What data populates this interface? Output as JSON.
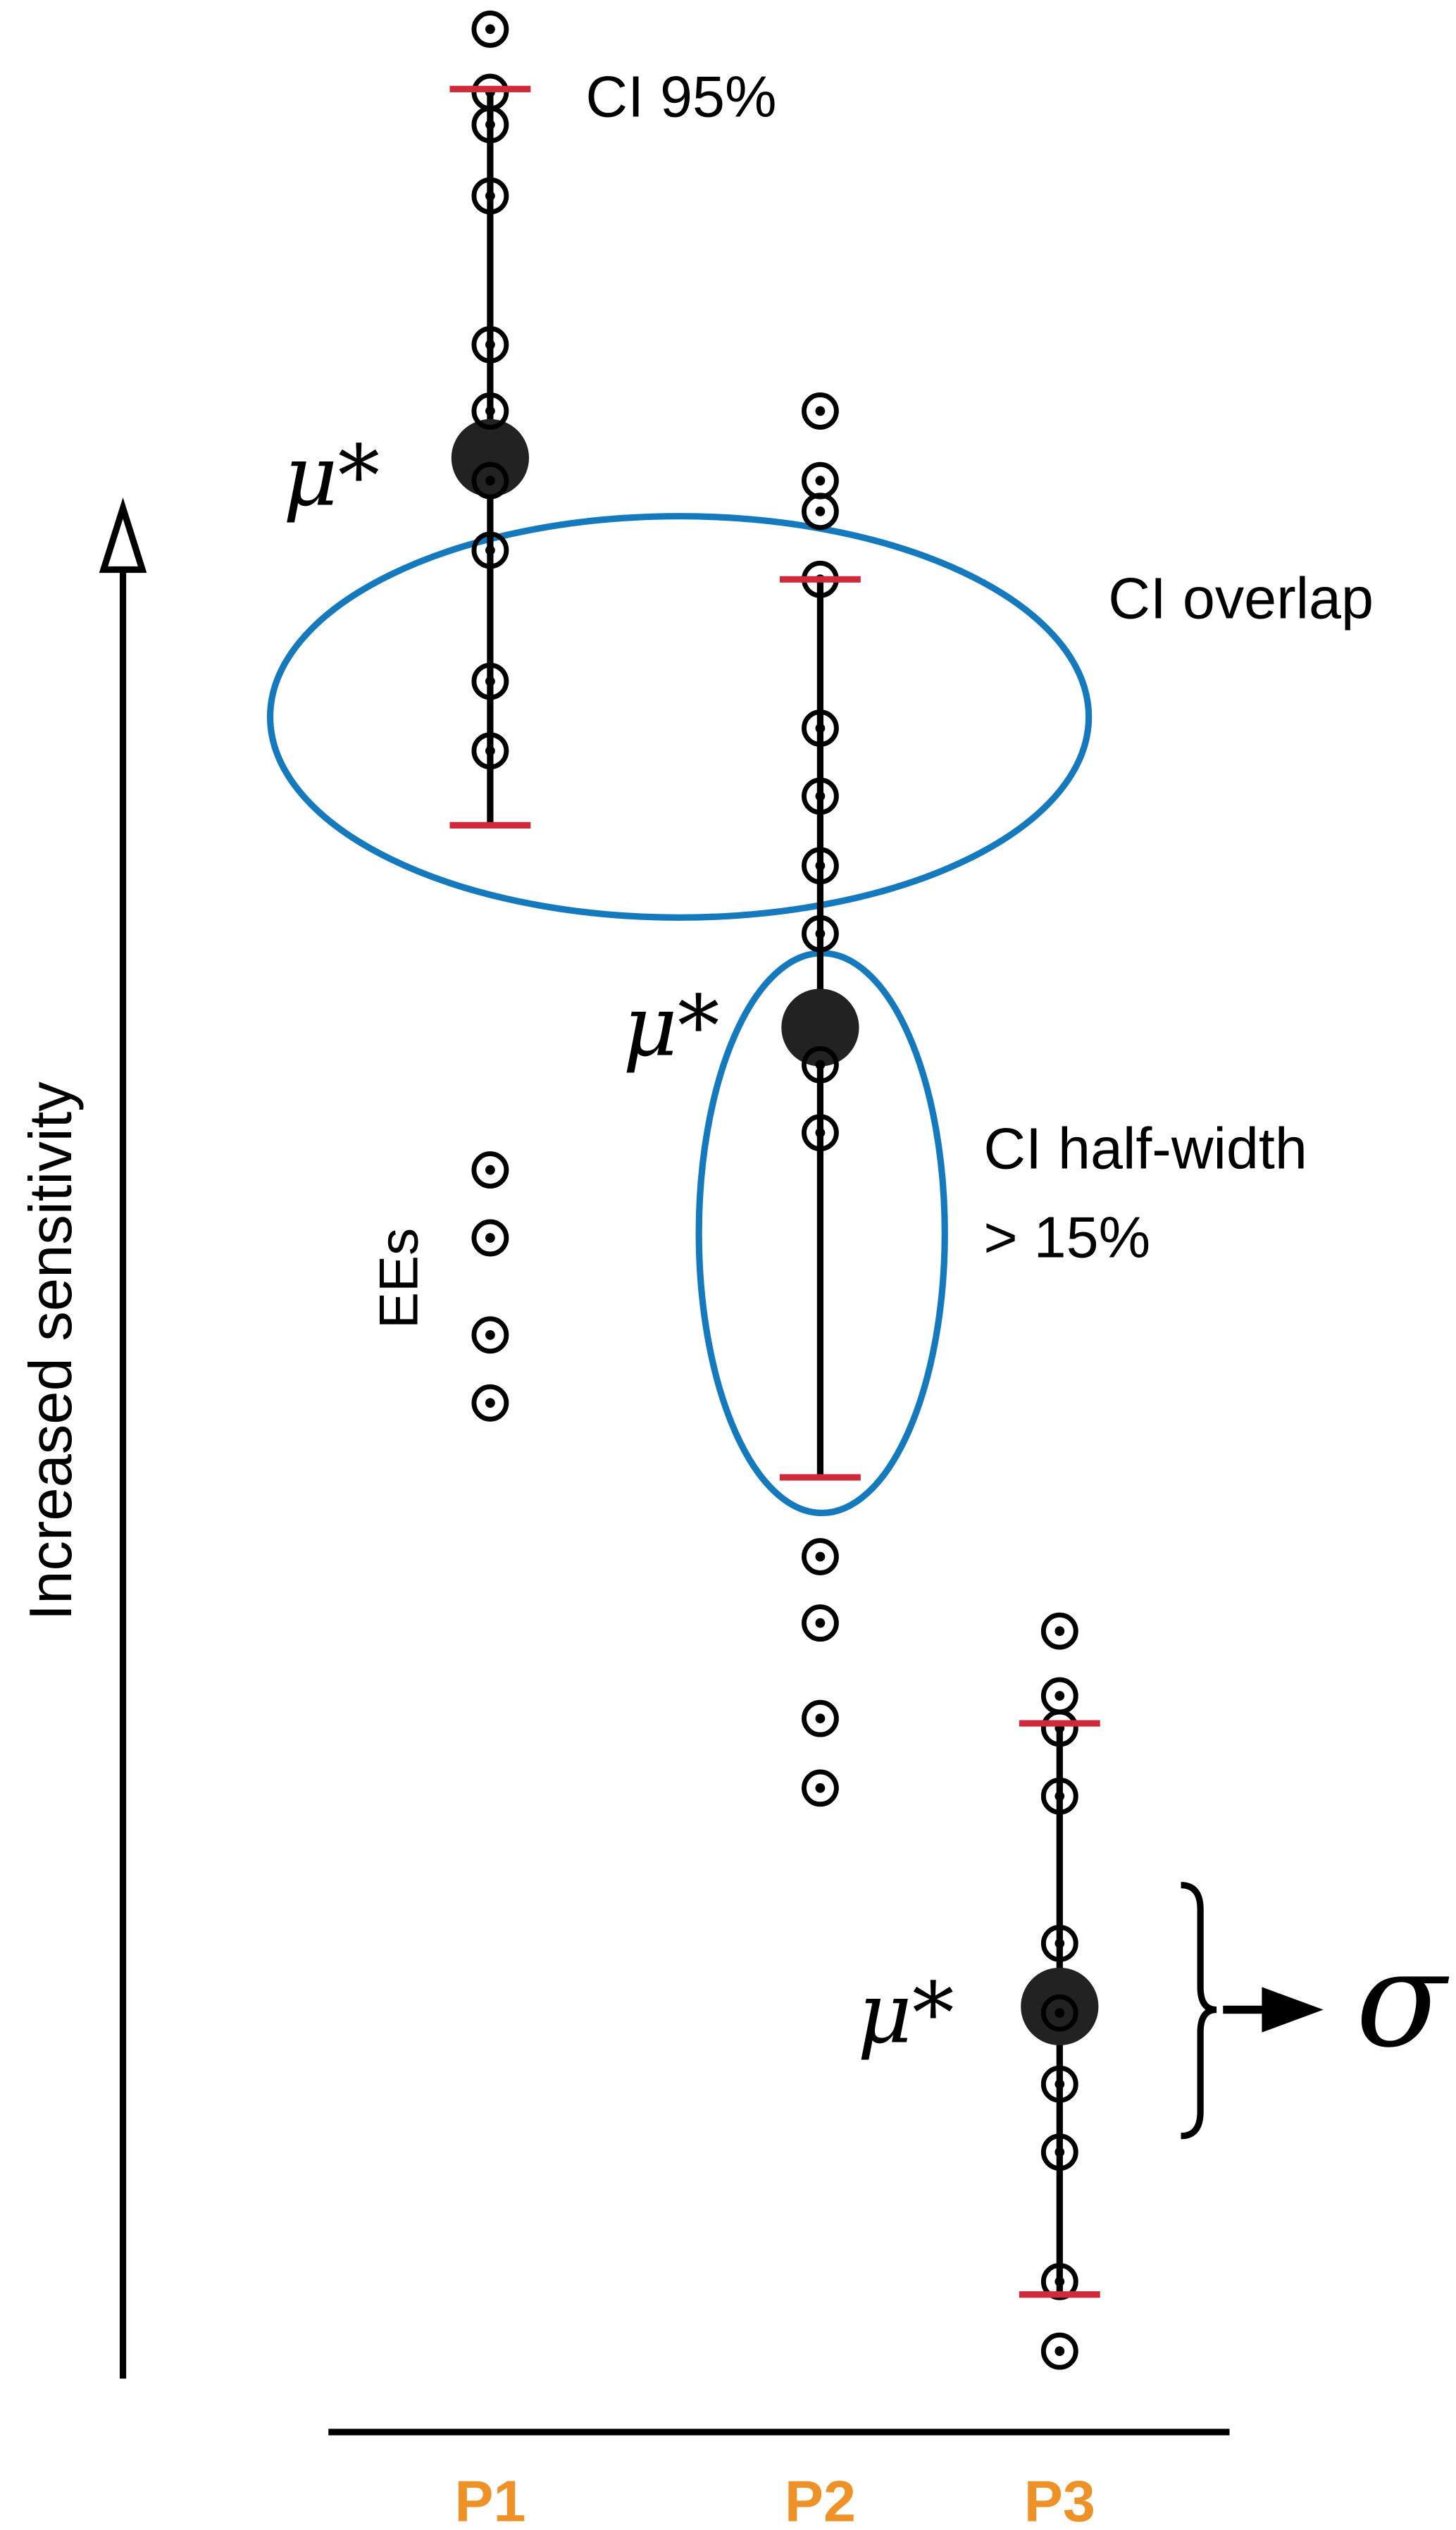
{
  "chart_data": {
    "type": "scatter",
    "title": "",
    "ylabel": "Increased sensitivity",
    "xlabel": "",
    "categories": [
      "P1",
      "P2",
      "P3"
    ],
    "ylim": [
      0,
      155
    ],
    "grid": false,
    "series": [
      {
        "name": "P1",
        "ees": [
          148.2,
          144.3,
          142.3,
          137.9,
          128.7,
          124.6,
          120.3,
          116.0,
          107.9,
          103.6,
          77.7,
          73.5,
          67.5,
          63.3
        ],
        "mu_star": 121.7,
        "ci": [
          99.0,
          144.5
        ]
      },
      {
        "name": "P2",
        "ees": [
          124.6,
          120.3,
          118.4,
          114.2,
          105.0,
          100.8,
          96.5,
          92.3,
          84.2,
          80.0,
          53.8,
          49.7,
          43.8,
          39.5
        ],
        "mu_star": 86.5,
        "ci": [
          58.7,
          114.2
        ]
      },
      {
        "name": "P3",
        "ees": [
          49.2,
          45.2,
          43.2,
          39.0,
          29.9,
          25.6,
          21.2,
          17.0,
          9.0,
          4.7
        ],
        "mu_star": 26.0,
        "ci": [
          8.2,
          43.5
        ]
      }
    ],
    "annotations": {
      "ci95": "CI 95%",
      "ci_overlap": "CI overlap",
      "ci_halfwidth_line1": "CI half-width",
      "ci_halfwidth_line2": "> 15%",
      "ees": "EEs",
      "mu_star": "μ*",
      "sigma": "σ"
    }
  },
  "colors": {
    "category_label": "#EE9227",
    "ci_cap": "#D0293A",
    "ellipse": "#1479BD",
    "ink": "#000000",
    "mean_dot": "#222222"
  }
}
